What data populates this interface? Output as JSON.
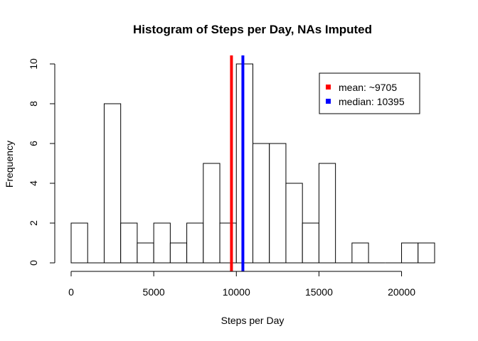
{
  "chart_data": {
    "type": "bar",
    "title": "Histogram of Steps per Day, NAs Imputed",
    "xlabel": "Steps per Day",
    "ylabel": "Frequency",
    "bin_width": 1000,
    "bins": [
      {
        "start": 0,
        "end": 1000,
        "count": 2
      },
      {
        "start": 1000,
        "end": 2000,
        "count": 0
      },
      {
        "start": 2000,
        "end": 3000,
        "count": 8
      },
      {
        "start": 3000,
        "end": 4000,
        "count": 2
      },
      {
        "start": 4000,
        "end": 5000,
        "count": 1
      },
      {
        "start": 5000,
        "end": 6000,
        "count": 2
      },
      {
        "start": 6000,
        "end": 7000,
        "count": 1
      },
      {
        "start": 7000,
        "end": 8000,
        "count": 2
      },
      {
        "start": 8000,
        "end": 9000,
        "count": 5
      },
      {
        "start": 9000,
        "end": 10000,
        "count": 2
      },
      {
        "start": 10000,
        "end": 11000,
        "count": 10
      },
      {
        "start": 11000,
        "end": 12000,
        "count": 6
      },
      {
        "start": 12000,
        "end": 13000,
        "count": 6
      },
      {
        "start": 13000,
        "end": 14000,
        "count": 4
      },
      {
        "start": 14000,
        "end": 15000,
        "count": 2
      },
      {
        "start": 15000,
        "end": 16000,
        "count": 5
      },
      {
        "start": 16000,
        "end": 17000,
        "count": 0
      },
      {
        "start": 17000,
        "end": 18000,
        "count": 1
      },
      {
        "start": 18000,
        "end": 19000,
        "count": 0
      },
      {
        "start": 19000,
        "end": 20000,
        "count": 0
      },
      {
        "start": 20000,
        "end": 21000,
        "count": 1
      },
      {
        "start": 21000,
        "end": 22000,
        "count": 1
      }
    ],
    "xlim": [
      0,
      22000
    ],
    "ylim": [
      0,
      10
    ],
    "x_ticks": [
      0,
      5000,
      10000,
      15000,
      20000
    ],
    "x_tick_labels": [
      "0",
      "5000",
      "10000",
      "15000",
      "20000"
    ],
    "y_ticks": [
      0,
      2,
      4,
      6,
      8,
      10
    ],
    "y_tick_labels": [
      "0",
      "2",
      "4",
      "6",
      "8",
      "10"
    ],
    "reference_lines": [
      {
        "label": "mean: ~9705",
        "value": 9705,
        "color": "#ff0000"
      },
      {
        "label": "median: 10395",
        "value": 10395,
        "color": "#0000ff"
      }
    ],
    "legend": {
      "position": "top-right",
      "entries": [
        {
          "label": "mean: ~9705",
          "color": "#ff0000"
        },
        {
          "label": "median: 10395",
          "color": "#0000ff"
        }
      ]
    },
    "bar_fill": "#ffffff",
    "bar_stroke": "#000000",
    "grid": false
  }
}
